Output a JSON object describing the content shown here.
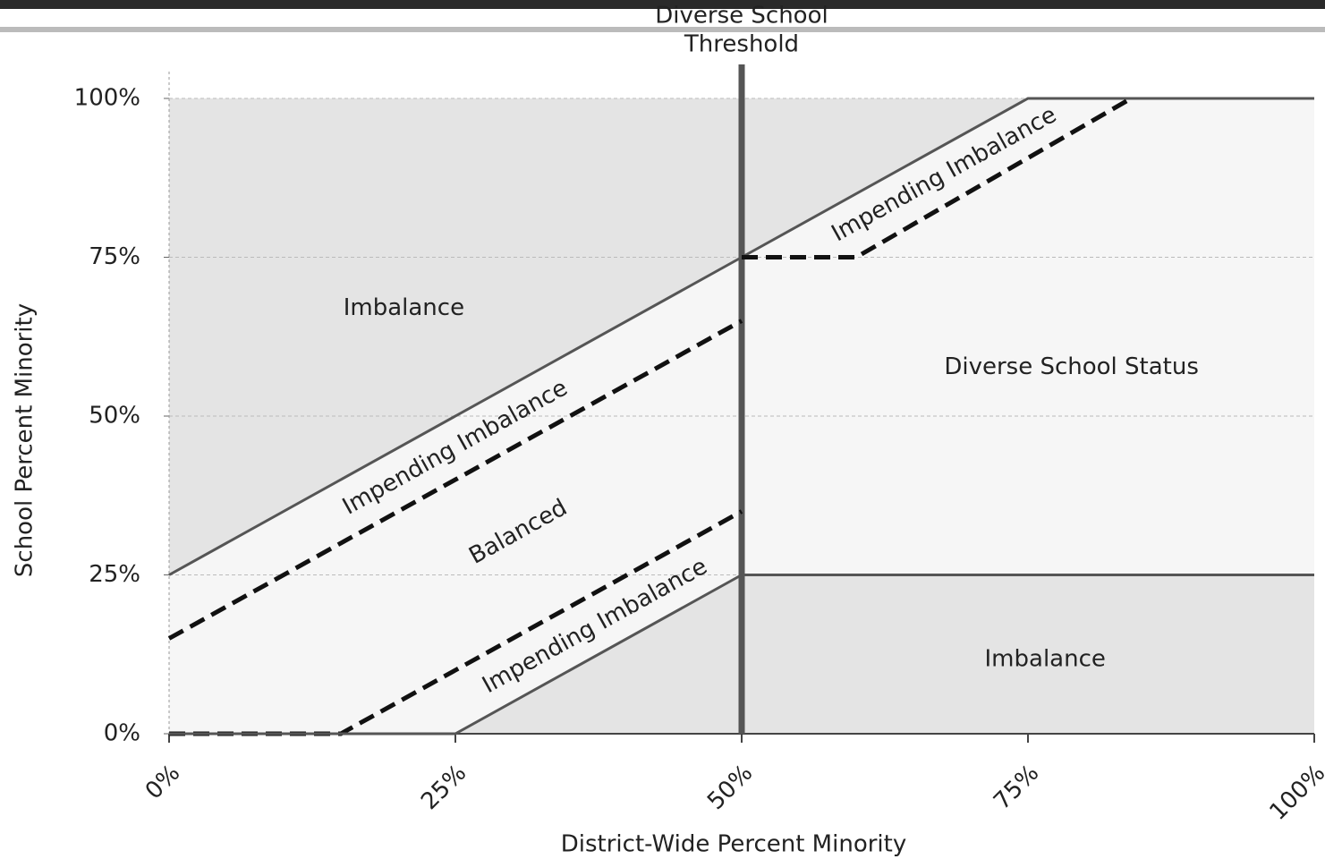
{
  "chart_data": {
    "type": "line",
    "x_label": "District-Wide Percent Minority",
    "y_label": "School Percent Minority",
    "xlim": [
      0,
      100
    ],
    "ylim": [
      0,
      100
    ],
    "xticks": [
      {
        "value": 0,
        "label": "0%"
      },
      {
        "value": 25,
        "label": "25%"
      },
      {
        "value": 50,
        "label": "50%"
      },
      {
        "value": 75,
        "label": "75%"
      },
      {
        "value": 100,
        "label": "100%"
      }
    ],
    "yticks": [
      {
        "value": 0,
        "label": "0%"
      },
      {
        "value": 25,
        "label": "25%"
      },
      {
        "value": 50,
        "label": "50%"
      },
      {
        "value": 75,
        "label": "75%"
      },
      {
        "value": 100,
        "label": "100%"
      }
    ],
    "grid": true,
    "threshold": {
      "x": 50,
      "label_lines": [
        "Diverse School",
        "Threshold"
      ]
    },
    "series": [
      {
        "style": "solid",
        "fill": "above",
        "color": "#555555",
        "x": [
          0,
          50,
          75,
          100
        ],
        "values": [
          25,
          75,
          100,
          100
        ]
      },
      {
        "style": "dashed",
        "color": "#111111",
        "x": [
          0,
          50
        ],
        "values": [
          15,
          65
        ]
      },
      {
        "style": "dashed",
        "color": "#111111",
        "x": [
          50,
          60,
          84
        ],
        "values": [
          75,
          75,
          100
        ]
      },
      {
        "style": "dashed",
        "color": "#111111",
        "x": [
          0,
          15,
          50
        ],
        "values": [
          0,
          0,
          35
        ]
      },
      {
        "style": "solid",
        "fill": "below",
        "color": "#555555",
        "x": [
          0,
          25,
          50
        ],
        "values": [
          0,
          0,
          25
        ]
      },
      {
        "style": "solid",
        "fill": "below",
        "color": "#333333",
        "x": [
          50,
          100
        ],
        "values": [
          25,
          25
        ]
      }
    ],
    "annotations": [
      "Imbalance",
      "Impending Imbalance",
      "Balanced",
      "Impending Imbalance",
      "Impending Imbalance",
      "Diverse School Status",
      "Imbalance"
    ]
  }
}
